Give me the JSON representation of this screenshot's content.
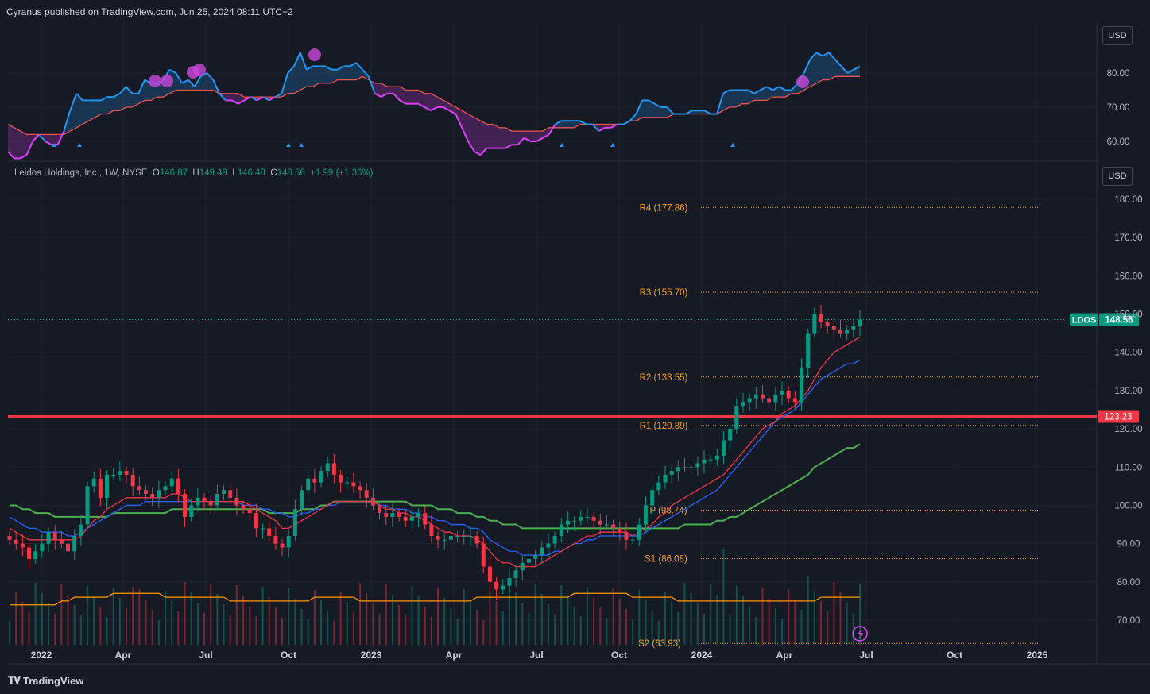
{
  "header": {
    "publisher": "Cyranus published on TradingView.com, Jun 25, 2024 08:11 UTC+2"
  },
  "symbol_line": {
    "name": "Leidos Holdings, Inc., 1W, NYSE",
    "o_label": "O",
    "o": "146.87",
    "h_label": "H",
    "h": "149.49",
    "l_label": "L",
    "l": "146.48",
    "c_label": "C",
    "c": "148.56",
    "change": "+1.99 (+1.36%)"
  },
  "currency_label": "USD",
  "footer": {
    "brand": "TradingView"
  },
  "colors": {
    "up": "#089981",
    "down": "#f23645",
    "ema_fast": "#f23645",
    "ema_mid": "#2962ff",
    "ema_slow": "#4caf50",
    "volume_ma": "#ff9800",
    "pivot": "#f7a21b",
    "hline": "#f23645",
    "rsi_line": "#2196f3",
    "rsi_down": "#e040fb"
  },
  "chart_data": [
    {
      "type": "line",
      "title": "",
      "y_ticks": [
        "80.00",
        "70.00",
        "60.00"
      ],
      "ylim": [
        55,
        90
      ],
      "series": [
        {
          "values": [
            57,
            55,
            55,
            56,
            60,
            62,
            60,
            59,
            59,
            63,
            69,
            74,
            72,
            72,
            72,
            72,
            73,
            73,
            74,
            76,
            74,
            74,
            78,
            77,
            77,
            78,
            81,
            80,
            77,
            78,
            76,
            79,
            80,
            78,
            74,
            72,
            72,
            71,
            72,
            73,
            72,
            73,
            72,
            73,
            74,
            80,
            82,
            86,
            81,
            82,
            82,
            82,
            81,
            81,
            82,
            82,
            83,
            81,
            79,
            74,
            73,
            74,
            74,
            72,
            71,
            71,
            71,
            70,
            69,
            70,
            70,
            69,
            68,
            64,
            60,
            57,
            56,
            58,
            58,
            58,
            58,
            59,
            59,
            61,
            60,
            60,
            61,
            62,
            65,
            66,
            66,
            66,
            66,
            65,
            65,
            63,
            64,
            64,
            65,
            65,
            66,
            68,
            72,
            72,
            71,
            70,
            70,
            68,
            68,
            68,
            69,
            69,
            69,
            68,
            68,
            74,
            75,
            75,
            75,
            75,
            74,
            75,
            76,
            75,
            76,
            75,
            75,
            77,
            80,
            84,
            86,
            85,
            86,
            84,
            82,
            80,
            81,
            82
          ]
        },
        {
          "values": [
            65,
            64,
            63,
            62,
            62,
            62,
            62,
            62,
            62,
            62,
            63,
            64,
            65,
            66,
            67,
            68,
            68,
            69,
            69,
            70,
            70,
            71,
            72,
            72,
            73,
            73,
            74,
            75,
            75,
            75,
            75,
            75,
            75,
            75,
            74,
            74,
            74,
            74,
            73,
            73,
            73,
            73,
            73,
            73,
            73,
            74,
            74,
            75,
            76,
            76,
            77,
            77,
            77,
            78,
            78,
            78,
            78,
            79,
            78,
            77,
            77,
            76,
            76,
            76,
            75,
            75,
            75,
            74,
            74,
            73,
            72,
            71,
            70,
            69,
            68,
            67,
            66,
            65,
            65,
            64,
            64,
            63,
            63,
            63,
            63,
            63,
            63,
            64,
            64,
            64,
            64,
            64,
            65,
            65,
            65,
            65,
            65,
            65,
            65,
            65,
            66,
            66,
            67,
            67,
            67,
            67,
            67,
            68,
            68,
            68,
            68,
            68,
            68,
            68,
            68,
            69,
            70,
            70,
            71,
            71,
            72,
            72,
            72,
            73,
            73,
            73,
            74,
            74,
            75,
            76,
            77,
            78,
            78,
            79,
            79,
            79,
            79,
            79
          ]
        }
      ],
      "signals_count": 7
    },
    {
      "type": "candlestick",
      "title": "Leidos Holdings, Inc., 1W, NYSE",
      "x_ticks": [
        "2022",
        "Apr",
        "Jul",
        "Oct",
        "2023",
        "Apr",
        "Jul",
        "Oct",
        "2024",
        "Apr",
        "Jul",
        "Oct",
        "2025"
      ],
      "y_ticks": [
        "180.00",
        "170.00",
        "160.00",
        "150.00",
        "140.00",
        "130.00",
        "120.00",
        "110.00",
        "100.00",
        "90.00",
        "80.00",
        "70.00"
      ],
      "ylim": [
        65,
        185
      ],
      "last_price_label": "LDOS",
      "last_price": "148.56",
      "horizontal_line": {
        "value": 123.23,
        "label": "123.23"
      },
      "pivots": [
        {
          "label": "R4 (177.86)",
          "value": 177.86
        },
        {
          "label": "R3 (155.70)",
          "value": 155.7
        },
        {
          "label": "R2 (133.55)",
          "value": 133.55
        },
        {
          "label": "R1 (120.89)",
          "value": 120.89
        },
        {
          "label": "P (98.74)",
          "value": 98.74
        },
        {
          "label": "S1 (86.08)",
          "value": 86.08
        },
        {
          "label": "S2 (63.93)",
          "value": 63.93
        }
      ],
      "closes": [
        91,
        90,
        89,
        86,
        88,
        90,
        93,
        91,
        90,
        88,
        92,
        95,
        105,
        107,
        102,
        108,
        108,
        109,
        108,
        105,
        104,
        103,
        102,
        104,
        105,
        107,
        103,
        97,
        100,
        102,
        101,
        100,
        103,
        104,
        102,
        100,
        99,
        98,
        94,
        94,
        92,
        90,
        89,
        92,
        99,
        104,
        107,
        106,
        109,
        111,
        108,
        106,
        106,
        105,
        104,
        102,
        100,
        98,
        97,
        98,
        97,
        96,
        97,
        98,
        95,
        92,
        91,
        91,
        92,
        92,
        92,
        92,
        90,
        84,
        80,
        78,
        79,
        81,
        83,
        85,
        86,
        87,
        89,
        90,
        92,
        95,
        96,
        96,
        97,
        97,
        96,
        95,
        95,
        94,
        93,
        91,
        91,
        95,
        100,
        104,
        106,
        108,
        109,
        110,
        110,
        110,
        111,
        112,
        112,
        113,
        117,
        120,
        126,
        127,
        128,
        129,
        128,
        127,
        129,
        130,
        128,
        127,
        136,
        145,
        150,
        148,
        147,
        146,
        145,
        146,
        147,
        148.56
      ],
      "ema_fast": [
        94,
        93,
        92,
        91,
        91,
        91,
        91,
        91,
        91,
        91,
        91,
        92,
        94,
        96,
        97,
        99,
        100,
        101,
        102,
        102,
        102,
        102,
        102,
        102,
        102,
        103,
        103,
        102,
        101,
        101,
        101,
        101,
        101,
        101,
        101,
        101,
        101,
        100,
        99,
        98,
        97,
        96,
        94,
        94,
        95,
        96,
        97,
        98,
        99,
        100,
        101,
        101,
        101,
        101,
        101,
        101,
        101,
        100,
        99,
        99,
        98,
        98,
        97,
        97,
        96,
        95,
        94,
        93,
        93,
        92,
        92,
        92,
        91,
        90,
        88,
        86,
        85,
        85,
        84,
        84,
        84,
        84,
        85,
        86,
        87,
        88,
        89,
        90,
        91,
        92,
        92,
        93,
        93,
        93,
        93,
        93,
        92,
        93,
        94,
        95,
        97,
        98,
        100,
        101,
        102,
        103,
        104,
        105,
        106,
        107,
        108,
        110,
        112,
        114,
        116,
        118,
        120,
        121,
        122,
        124,
        125,
        126,
        128,
        130,
        133,
        136,
        138,
        140,
        141,
        142,
        143,
        144
      ],
      "ema_mid": [
        97,
        96,
        95,
        94,
        94,
        93,
        93,
        93,
        93,
        92,
        92,
        93,
        94,
        95,
        96,
        97,
        98,
        99,
        100,
        100,
        100,
        101,
        101,
        101,
        101,
        101,
        101,
        101,
        101,
        101,
        101,
        101,
        101,
        101,
        101,
        101,
        100,
        100,
        100,
        99,
        99,
        98,
        98,
        97,
        97,
        98,
        98,
        99,
        99,
        100,
        100,
        101,
        101,
        101,
        101,
        101,
        101,
        100,
        100,
        99,
        99,
        99,
        98,
        98,
        97,
        97,
        96,
        96,
        95,
        95,
        95,
        94,
        94,
        93,
        91,
        90,
        89,
        88,
        88,
        87,
        87,
        87,
        87,
        87,
        88,
        88,
        89,
        90,
        90,
        91,
        91,
        92,
        92,
        92,
        92,
        92,
        92,
        92,
        93,
        94,
        95,
        96,
        97,
        98,
        99,
        100,
        101,
        102,
        103,
        104,
        106,
        108,
        110,
        112,
        114,
        116,
        118,
        120,
        122,
        123,
        124,
        125,
        127,
        129,
        131,
        133,
        134,
        135,
        136,
        137,
        137,
        138
      ],
      "ema_slow": [
        100,
        100,
        99,
        99,
        98,
        98,
        98,
        97,
        97,
        97,
        97,
        97,
        97,
        97,
        97,
        97,
        98,
        98,
        98,
        98,
        98,
        98,
        98,
        98,
        98,
        99,
        99,
        99,
        99,
        99,
        99,
        99,
        99,
        99,
        99,
        99,
        99,
        99,
        99,
        99,
        98,
        98,
        98,
        98,
        98,
        99,
        99,
        99,
        100,
        100,
        101,
        101,
        101,
        101,
        101,
        101,
        101,
        101,
        101,
        101,
        101,
        101,
        100,
        100,
        100,
        100,
        99,
        99,
        99,
        98,
        98,
        98,
        97,
        97,
        96,
        96,
        95,
        95,
        95,
        94,
        94,
        94,
        94,
        94,
        94,
        94,
        94,
        94,
        94,
        94,
        94,
        94,
        94,
        94,
        94,
        94,
        94,
        94,
        94,
        94,
        94,
        94,
        94,
        94,
        95,
        95,
        95,
        95,
        95,
        96,
        96,
        97,
        97,
        98,
        99,
        100,
        101,
        102,
        103,
        104,
        105,
        106,
        107,
        108,
        110,
        111,
        112,
        113,
        114,
        115,
        115,
        116
      ],
      "volume_ma": [
        74,
        74,
        74,
        74,
        74,
        74,
        74,
        74,
        75,
        75,
        76,
        76,
        76,
        76,
        76,
        76,
        77,
        77,
        77,
        77,
        77,
        77,
        77,
        77,
        76,
        76,
        76,
        76,
        76,
        76,
        76,
        76,
        76,
        76,
        75,
        75,
        75,
        75,
        75,
        75,
        75,
        75,
        75,
        75,
        75,
        75,
        75,
        76,
        76,
        76,
        76,
        76,
        76,
        76,
        75,
        75,
        75,
        75,
        75,
        75,
        75,
        75,
        75,
        75,
        75,
        75,
        75,
        75,
        75,
        75,
        75,
        75,
        76,
        76,
        76,
        76,
        76,
        76,
        76,
        76,
        76,
        76,
        76,
        76,
        76,
        76,
        76,
        77,
        77,
        77,
        77,
        77,
        77,
        77,
        77,
        77,
        76,
        76,
        76,
        76,
        76,
        76,
        76,
        75,
        75,
        75,
        75,
        75,
        75,
        75,
        75,
        75,
        75,
        75,
        75,
        75,
        75,
        75,
        75,
        75,
        75,
        75,
        75,
        75,
        75,
        76,
        76,
        76,
        76,
        76,
        76,
        76
      ]
    }
  ]
}
